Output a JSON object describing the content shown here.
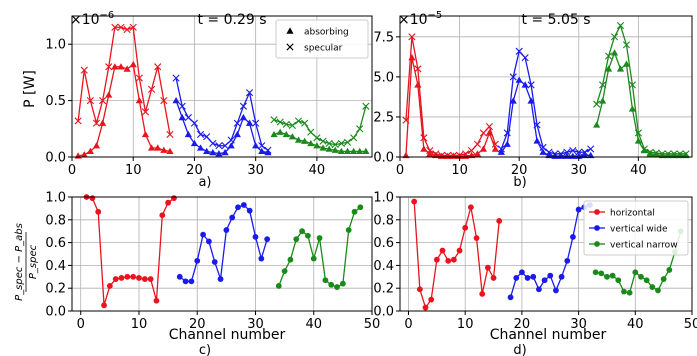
{
  "figure": {
    "ylabel_top": "P [W]",
    "ylabel_bottom_num": "P_spec − P_abs",
    "ylabel_bottom_den": "P_spec",
    "xlabel": "Channel number"
  },
  "colors": {
    "red": "#e8141e",
    "blue": "#1a1aef",
    "green": "#1a8a1a"
  },
  "chart_data": [
    {
      "id": "a",
      "type": "line",
      "title": "t = 0.29 s",
      "panel_label": "a)",
      "exponent": "×10",
      "exponent_power": "−6",
      "xlim": [
        0,
        49
      ],
      "ylim": [
        0,
        1.25
      ],
      "xticks": [
        0,
        10,
        20,
        30,
        40
      ],
      "xtick_labels": [
        "0",
        "10",
        "20",
        "30",
        "40"
      ],
      "yticks": [
        0.0,
        0.5,
        1.0
      ],
      "ytick_labels": [
        "0.0",
        "0.5",
        "1.0"
      ],
      "grid": true,
      "legend": {
        "position": "top-right",
        "entries": [
          {
            "label": "absorbing",
            "marker": "triangle"
          },
          {
            "label": "specular",
            "marker": "x"
          }
        ]
      },
      "series": [
        {
          "color": "red",
          "marker": "triangle",
          "x": [
            1,
            2,
            3,
            4,
            5,
            6,
            7,
            8,
            9,
            10,
            11,
            12,
            13,
            14,
            15,
            16
          ],
          "y": [
            0.01,
            0.02,
            0.05,
            0.1,
            0.3,
            0.55,
            0.8,
            0.8,
            0.78,
            0.82,
            0.5,
            0.2,
            0.08,
            0.08,
            0.06,
            0.05
          ]
        },
        {
          "color": "red",
          "marker": "x",
          "x": [
            1,
            2,
            3,
            4,
            5,
            6,
            7,
            8,
            9,
            10,
            11,
            12,
            13,
            14,
            15,
            16
          ],
          "y": [
            0.32,
            0.77,
            0.5,
            0.3,
            0.5,
            0.8,
            1.15,
            1.15,
            1.13,
            1.15,
            0.7,
            0.4,
            0.6,
            0.8,
            0.5,
            0.2
          ]
        },
        {
          "color": "blue",
          "marker": "triangle",
          "x": [
            17,
            18,
            19,
            20,
            21,
            22,
            23,
            24,
            25,
            26,
            27,
            28,
            29,
            30,
            31,
            32
          ],
          "y": [
            0.5,
            0.35,
            0.2,
            0.12,
            0.08,
            0.05,
            0.04,
            0.03,
            0.04,
            0.1,
            0.2,
            0.35,
            0.3,
            0.1,
            0.05,
            0.04
          ]
        },
        {
          "color": "blue",
          "marker": "x",
          "x": [
            17,
            18,
            19,
            20,
            21,
            22,
            23,
            24,
            25,
            26,
            27,
            28,
            29,
            30,
            31,
            32
          ],
          "y": [
            0.7,
            0.45,
            0.35,
            0.3,
            0.2,
            0.18,
            0.12,
            0.1,
            0.1,
            0.15,
            0.3,
            0.45,
            0.57,
            0.3,
            0.1,
            0.06
          ]
        },
        {
          "color": "green",
          "marker": "triangle",
          "x": [
            33,
            34,
            35,
            36,
            37,
            38,
            39,
            40,
            41,
            42,
            43,
            44,
            45,
            46,
            47,
            48
          ],
          "y": [
            0.2,
            0.22,
            0.2,
            0.18,
            0.15,
            0.14,
            0.12,
            0.1,
            0.08,
            0.07,
            0.06,
            0.05,
            0.05,
            0.05,
            0.05,
            0.05
          ]
        },
        {
          "color": "green",
          "marker": "x",
          "x": [
            33,
            34,
            35,
            36,
            37,
            38,
            39,
            40,
            41,
            42,
            43,
            44,
            45,
            46,
            47,
            48
          ],
          "y": [
            0.33,
            0.31,
            0.29,
            0.28,
            0.32,
            0.3,
            0.22,
            0.17,
            0.14,
            0.12,
            0.11,
            0.12,
            0.13,
            0.17,
            0.25,
            0.45
          ]
        }
      ]
    },
    {
      "id": "b",
      "type": "line",
      "title": "t = 5.05 s",
      "panel_label": "b)",
      "exponent": "×10",
      "exponent_power": "−5",
      "xlim": [
        0,
        49
      ],
      "ylim": [
        0,
        8.8
      ],
      "xticks": [
        0,
        10,
        20,
        30,
        40
      ],
      "xtick_labels": [
        "0",
        "10",
        "20",
        "30",
        "40"
      ],
      "yticks": [
        0.0,
        2.5,
        5.0,
        7.5
      ],
      "ytick_labels": [
        "0.0",
        "2.5",
        "5.0",
        "7.5"
      ],
      "grid": true,
      "series": [
        {
          "color": "red",
          "marker": "triangle",
          "x": [
            1,
            2,
            3,
            4,
            5,
            6,
            7,
            8,
            9,
            10,
            11,
            12,
            13,
            14,
            15,
            16
          ],
          "y": [
            0.1,
            6.2,
            4.5,
            0.5,
            0.2,
            0.1,
            0.05,
            0.05,
            0.05,
            0.05,
            0.05,
            0.1,
            0.2,
            0.5,
            1.5,
            0.5
          ]
        },
        {
          "color": "red",
          "marker": "x",
          "x": [
            1,
            2,
            3,
            4,
            5,
            6,
            7,
            8,
            9,
            10,
            11,
            12,
            13,
            14,
            15,
            16
          ],
          "y": [
            2.3,
            7.5,
            5.5,
            1.2,
            0.4,
            0.2,
            0.1,
            0.1,
            0.1,
            0.1,
            0.2,
            0.4,
            0.8,
            1.5,
            1.9,
            0.8
          ]
        },
        {
          "color": "blue",
          "marker": "triangle",
          "x": [
            17,
            18,
            19,
            20,
            21,
            22,
            23,
            24,
            25,
            26,
            27,
            28,
            29,
            30,
            31,
            32
          ],
          "y": [
            0.3,
            0.8,
            3.5,
            4.8,
            4.5,
            3.5,
            1.0,
            0.3,
            0.1,
            0.05,
            0.05,
            0.05,
            0.05,
            0.05,
            0.1,
            0.1
          ]
        },
        {
          "color": "blue",
          "marker": "x",
          "x": [
            17,
            18,
            19,
            20,
            21,
            22,
            23,
            24,
            25,
            26,
            27,
            28,
            29,
            30,
            31,
            32
          ],
          "y": [
            0.5,
            1.5,
            5.0,
            6.6,
            6.2,
            4.5,
            2.0,
            0.6,
            0.3,
            0.2,
            0.2,
            0.3,
            0.4,
            0.3,
            0.3,
            0.5
          ]
        },
        {
          "color": "green",
          "marker": "triangle",
          "x": [
            33,
            34,
            35,
            36,
            37,
            38,
            39,
            40,
            41,
            42,
            43,
            44,
            45,
            46,
            47,
            48
          ],
          "y": [
            2.0,
            3.5,
            5.5,
            6.5,
            5.5,
            5.8,
            3.0,
            1.0,
            0.4,
            0.2,
            0.15,
            0.1,
            0.1,
            0.1,
            0.1,
            0.1
          ]
        },
        {
          "color": "green",
          "marker": "x",
          "x": [
            33,
            34,
            35,
            36,
            37,
            38,
            39,
            40,
            41,
            42,
            43,
            44,
            45,
            46,
            47,
            48
          ],
          "y": [
            3.3,
            4.5,
            6.3,
            7.5,
            8.2,
            7.0,
            4.5,
            1.5,
            0.5,
            0.3,
            0.25,
            0.2,
            0.2,
            0.2,
            0.2,
            0.2
          ]
        }
      ]
    },
    {
      "id": "c",
      "type": "line",
      "panel_label": "c)",
      "xlim": [
        -1.5,
        50
      ],
      "ylim": [
        0,
        1.0
      ],
      "xticks": [
        0,
        10,
        20,
        30,
        40,
        50
      ],
      "xtick_labels": [
        "0",
        "10",
        "20",
        "30",
        "40",
        "50"
      ],
      "yticks": [
        0.0,
        0.2,
        0.4,
        0.6,
        0.8,
        1.0
      ],
      "ytick_labels": [
        "0.0",
        "0.2",
        "0.4",
        "0.6",
        "0.8",
        "1.0"
      ],
      "grid": true,
      "series": [
        {
          "color": "red",
          "marker": "circle",
          "x": [
            1,
            2,
            3,
            4,
            5,
            6,
            7,
            8,
            9,
            10,
            11,
            12,
            13,
            14,
            15,
            16
          ],
          "y": [
            1.0,
            0.99,
            0.87,
            0.05,
            0.22,
            0.28,
            0.29,
            0.3,
            0.3,
            0.29,
            0.28,
            0.28,
            0.09,
            0.84,
            0.95,
            0.99
          ]
        },
        {
          "color": "blue",
          "marker": "circle",
          "x": [
            17,
            18,
            19,
            20,
            21,
            22,
            23,
            24,
            25,
            26,
            27,
            28,
            29,
            30,
            31,
            32
          ],
          "y": [
            0.3,
            0.26,
            0.26,
            0.44,
            0.67,
            0.61,
            0.43,
            0.28,
            0.71,
            0.82,
            0.91,
            0.93,
            0.88,
            0.65,
            0.46,
            0.63
          ]
        },
        {
          "color": "green",
          "marker": "circle",
          "x": [
            34,
            35,
            36,
            37,
            38,
            39,
            40,
            41,
            42,
            43,
            44,
            45,
            46,
            47,
            48
          ],
          "y": [
            0.22,
            0.35,
            0.45,
            0.63,
            0.7,
            0.66,
            0.46,
            0.64,
            0.27,
            0.23,
            0.21,
            0.24,
            0.71,
            0.87,
            0.91
          ]
        }
      ]
    },
    {
      "id": "d",
      "type": "line",
      "panel_label": "d)",
      "xlim": [
        -1.5,
        50
      ],
      "ylim": [
        0,
        1.0
      ],
      "xticks": [
        0,
        10,
        20,
        30,
        40,
        50
      ],
      "xtick_labels": [
        "0",
        "10",
        "20",
        "30",
        "40",
        "50"
      ],
      "yticks": [
        0.0,
        0.2,
        0.4,
        0.6,
        0.8,
        1.0
      ],
      "ytick_labels": [
        "0.0",
        "0.2",
        "0.4",
        "0.6",
        "0.8",
        "1.0"
      ],
      "grid": true,
      "legend": {
        "position": "top-right",
        "entries": [
          {
            "label": "horizontal",
            "color": "red"
          },
          {
            "label": "vertical wide",
            "color": "blue"
          },
          {
            "label": "vertical narrow",
            "color": "green"
          }
        ]
      },
      "series": [
        {
          "color": "red",
          "marker": "circle",
          "x": [
            1,
            2,
            3,
            4,
            5,
            6,
            7,
            8,
            9,
            10,
            11,
            12,
            13,
            14,
            15,
            16
          ],
          "y": [
            0.96,
            0.19,
            0.03,
            0.1,
            0.45,
            0.53,
            0.44,
            0.45,
            0.53,
            0.73,
            0.91,
            0.64,
            0.15,
            0.38,
            0.29,
            0.79
          ]
        },
        {
          "color": "blue",
          "marker": "circle",
          "x": [
            18,
            19,
            20,
            21,
            22,
            23,
            24,
            25,
            26,
            27,
            28,
            29,
            30,
            31,
            32
          ],
          "y": [
            0.12,
            0.29,
            0.34,
            0.29,
            0.3,
            0.19,
            0.27,
            0.31,
            0.18,
            0.3,
            0.44,
            0.65,
            0.89,
            0.91,
            0.93
          ]
        },
        {
          "color": "green",
          "marker": "circle",
          "x": [
            33,
            34,
            35,
            36,
            37,
            38,
            39,
            40,
            41,
            42,
            43,
            44,
            45,
            46,
            47,
            48
          ],
          "y": [
            0.34,
            0.33,
            0.3,
            0.31,
            0.27,
            0.17,
            0.16,
            0.34,
            0.3,
            0.27,
            0.21,
            0.18,
            0.28,
            0.36,
            0.52,
            0.7
          ]
        }
      ]
    }
  ]
}
